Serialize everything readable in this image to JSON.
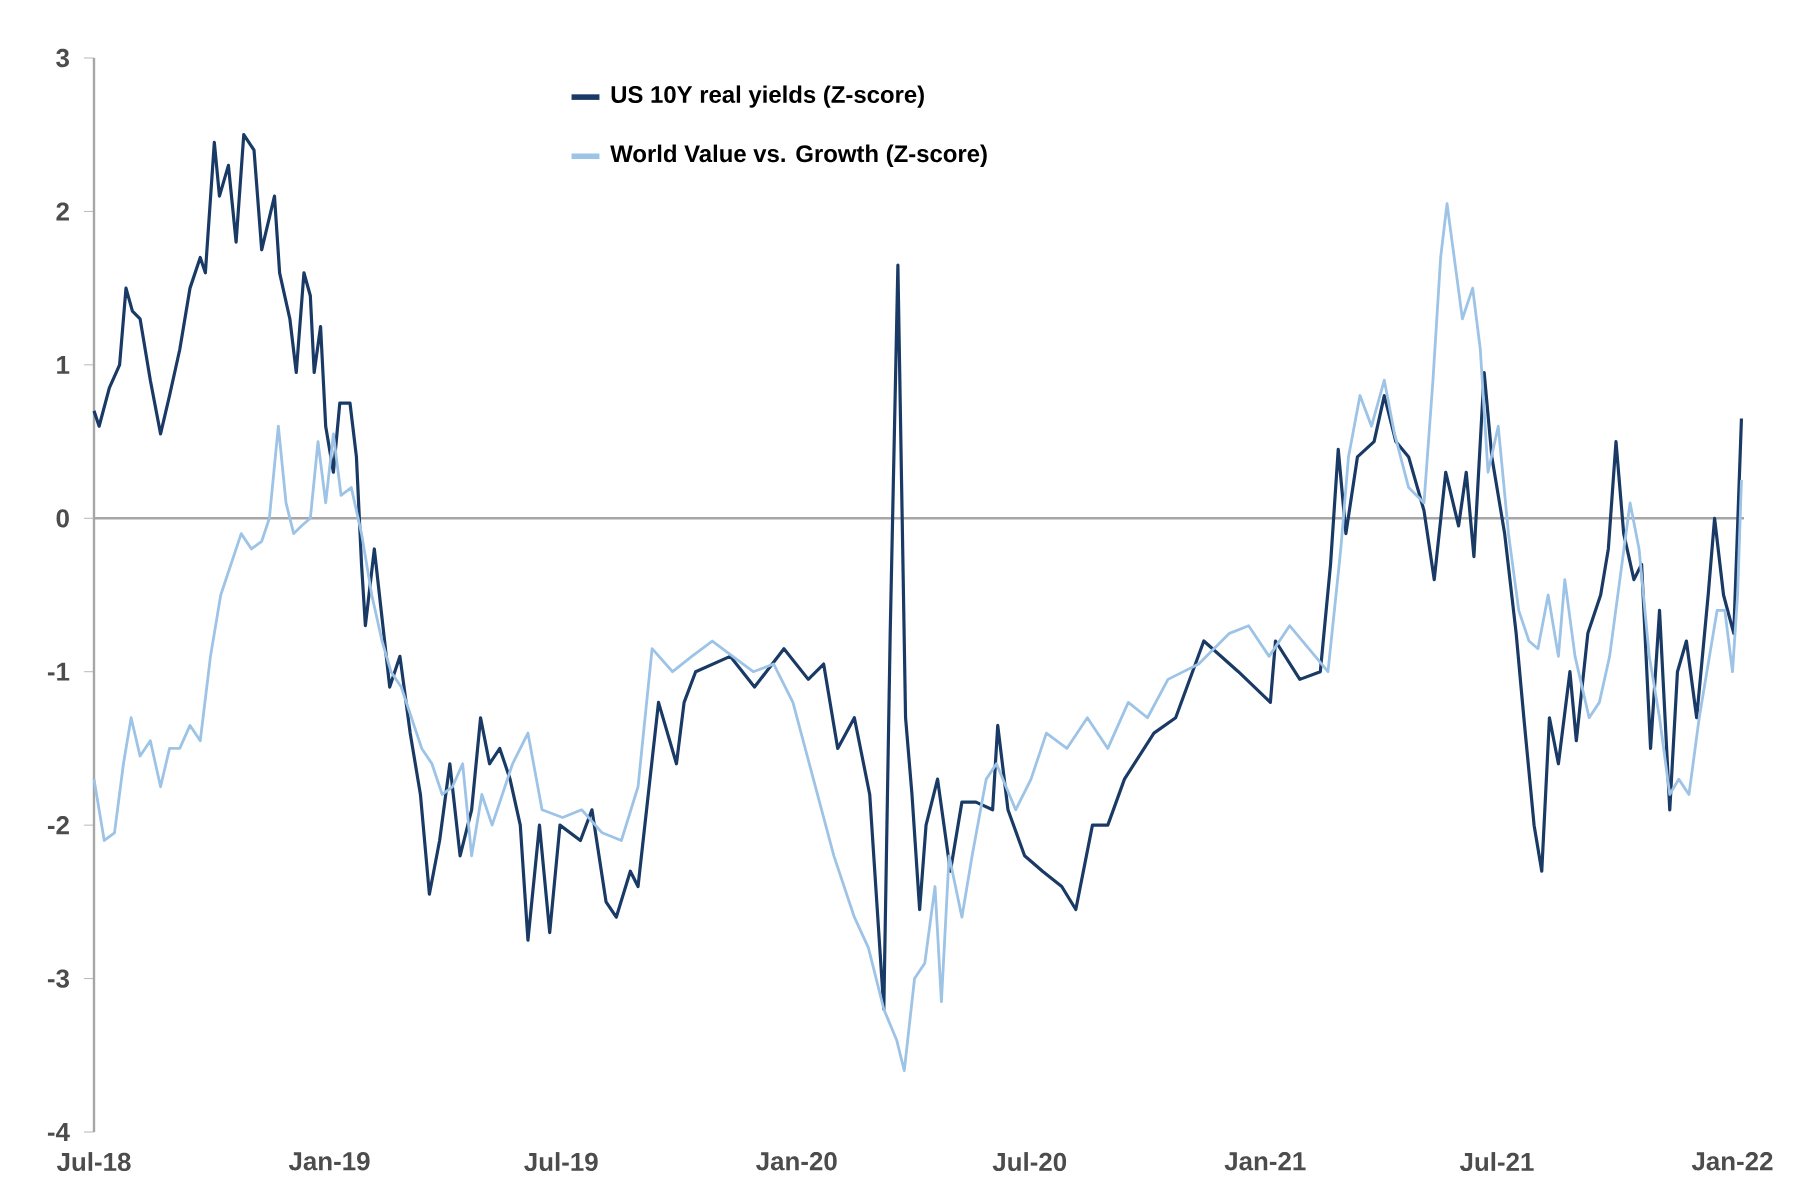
{
  "chart_data": {
    "type": "line",
    "xlim": [
      "2018-07-01",
      "2022-01-10"
    ],
    "xticks": [
      {
        "value": "2018-07-01",
        "label": "Jul-18"
      },
      {
        "value": "2019-01-01",
        "label": "Jan-19"
      },
      {
        "value": "2019-07-01",
        "label": "Jul-19"
      },
      {
        "value": "2020-01-01",
        "label": "Jan-20"
      },
      {
        "value": "2020-07-01",
        "label": "Jul-20"
      },
      {
        "value": "2021-01-01",
        "label": "Jan-21"
      },
      {
        "value": "2021-07-01",
        "label": "Jul-21"
      },
      {
        "value": "2022-01-01",
        "label": "Jan-22"
      }
    ],
    "ylim": [
      -4,
      3
    ],
    "yticks": [
      -4,
      -3,
      -2,
      -1,
      0,
      1,
      2,
      3
    ],
    "grid": false,
    "legend": "top",
    "marker": "none",
    "line_style": "solid",
    "ref_lines": [
      {
        "axis": "y",
        "value": 0,
        "color": "#a6a6a6"
      }
    ],
    "series": [
      {
        "name": "US 10Y real yields (Z-score)",
        "color": "#1a3a66",
        "x": [
          "2018-07-01",
          "2018-07-05",
          "2018-07-13",
          "2018-07-21",
          "2018-07-26",
          "2018-07-31",
          "2018-08-06",
          "2018-08-14",
          "2018-08-22",
          "2018-08-29",
          "2018-09-06",
          "2018-09-14",
          "2018-09-22",
          "2018-09-26",
          "2018-10-03",
          "2018-10-07",
          "2018-10-14",
          "2018-10-20",
          "2018-10-26",
          "2018-11-03",
          "2018-11-09",
          "2018-11-19",
          "2018-11-23",
          "2018-12-01",
          "2018-12-06",
          "2018-12-12",
          "2018-12-17",
          "2018-12-20",
          "2018-12-25",
          "2018-12-29",
          "2019-01-04",
          "2019-01-09",
          "2019-01-17",
          "2019-01-22",
          "2019-01-26",
          "2019-01-29",
          "2019-02-05",
          "2019-02-09",
          "2019-02-17",
          "2019-02-25",
          "2019-03-05",
          "2019-03-13",
          "2019-03-20",
          "2019-03-28",
          "2019-04-05",
          "2019-04-13",
          "2019-04-22",
          "2019-04-29",
          "2019-05-06",
          "2019-05-14",
          "2019-05-22",
          "2019-05-30",
          "2019-06-05",
          "2019-06-14",
          "2019-06-22",
          "2019-06-30",
          "2019-07-16",
          "2019-07-25",
          "2019-08-05",
          "2019-08-13",
          "2019-08-24",
          "2019-08-30",
          "2019-09-15",
          "2019-09-29",
          "2019-10-05",
          "2019-10-14",
          "2019-11-10",
          "2019-11-29",
          "2019-12-22",
          "2020-01-10",
          "2020-01-22",
          "2020-02-02",
          "2020-02-15",
          "2020-02-27",
          "2020-03-09",
          "2020-03-14",
          "2020-03-20",
          "2020-03-26",
          "2020-03-31",
          "2020-04-06",
          "2020-04-11",
          "2020-04-20",
          "2020-04-30",
          "2020-05-09",
          "2020-05-20",
          "2020-06-02",
          "2020-06-06",
          "2020-06-14",
          "2020-06-27",
          "2020-07-11",
          "2020-07-26",
          "2020-08-06",
          "2020-08-19",
          "2020-08-31",
          "2020-09-13",
          "2020-10-06",
          "2020-10-23",
          "2020-11-14",
          "2020-12-11",
          "2021-01-05",
          "2021-01-09",
          "2021-01-28",
          "2021-02-13",
          "2021-02-21",
          "2021-02-27",
          "2021-03-05",
          "2021-03-14",
          "2021-03-27",
          "2021-04-04",
          "2021-04-13",
          "2021-04-23",
          "2021-05-05",
          "2021-05-13",
          "2021-05-22",
          "2021-06-01",
          "2021-06-07",
          "2021-06-13",
          "2021-06-21",
          "2021-06-27",
          "2021-07-07",
          "2021-07-16",
          "2021-07-22",
          "2021-07-30",
          "2021-08-05",
          "2021-08-11",
          "2021-08-18",
          "2021-08-27",
          "2021-09-01",
          "2021-09-10",
          "2021-09-20",
          "2021-09-26",
          "2021-10-02",
          "2021-10-08",
          "2021-10-16",
          "2021-10-22",
          "2021-10-29",
          "2021-11-05",
          "2021-11-13",
          "2021-11-19",
          "2021-11-26",
          "2021-12-04",
          "2021-12-13",
          "2021-12-18",
          "2021-12-25",
          "2022-01-02",
          "2022-01-08"
        ],
        "values": [
          0.7,
          0.6,
          0.85,
          1.0,
          1.5,
          1.35,
          1.3,
          0.9,
          0.55,
          0.8,
          1.1,
          1.5,
          1.7,
          1.6,
          2.45,
          2.1,
          2.3,
          1.8,
          2.5,
          2.4,
          1.75,
          2.1,
          1.6,
          1.3,
          0.95,
          1.6,
          1.45,
          0.95,
          1.25,
          0.6,
          0.3,
          0.75,
          0.75,
          0.4,
          -0.3,
          -0.7,
          -0.2,
          -0.5,
          -1.1,
          -0.9,
          -1.4,
          -1.8,
          -2.45,
          -2.1,
          -1.6,
          -2.2,
          -1.9,
          -1.3,
          -1.6,
          -1.5,
          -1.7,
          -2.0,
          -2.75,
          -2.0,
          -2.7,
          -2.0,
          -2.1,
          -1.9,
          -2.5,
          -2.6,
          -2.3,
          -2.4,
          -1.2,
          -1.6,
          -1.2,
          -1.0,
          -0.9,
          -1.1,
          -0.85,
          -1.05,
          -0.95,
          -1.5,
          -1.3,
          -1.8,
          -3.2,
          -0.75,
          1.65,
          -1.3,
          -1.8,
          -2.55,
          -2.0,
          -1.7,
          -2.3,
          -1.85,
          -1.85,
          -1.9,
          -1.35,
          -1.9,
          -2.2,
          -2.3,
          -2.4,
          -2.55,
          -2.0,
          -2.0,
          -1.7,
          -1.4,
          -1.3,
          -0.8,
          -1.0,
          -1.2,
          -0.8,
          -1.05,
          -1.0,
          -0.3,
          0.45,
          -0.1,
          0.4,
          0.5,
          0.8,
          0.5,
          0.4,
          0.05,
          -0.4,
          0.3,
          -0.05,
          0.3,
          -0.25,
          0.95,
          0.4,
          -0.1,
          -0.75,
          -1.3,
          -2.0,
          -2.3,
          -1.3,
          -1.6,
          -1.0,
          -1.45,
          -0.75,
          -0.5,
          -0.2,
          0.5,
          -0.1,
          -0.4,
          -0.3,
          -1.5,
          -0.6,
          -1.9,
          -1.0,
          -0.8,
          -1.3,
          -0.5,
          0.0,
          -0.5,
          -0.75,
          0.65
        ]
      },
      {
        "name": "World Value vs. Growth (Z-score)",
        "color": "#9dc3e6",
        "x": [
          "2018-07-01",
          "2018-07-09",
          "2018-07-17",
          "2018-07-24",
          "2018-07-30",
          "2018-08-06",
          "2018-08-14",
          "2018-08-22",
          "2018-08-29",
          "2018-09-06",
          "2018-09-14",
          "2018-09-22",
          "2018-09-30",
          "2018-10-08",
          "2018-10-16",
          "2018-10-24",
          "2018-11-01",
          "2018-11-09",
          "2018-11-15",
          "2018-11-22",
          "2018-11-28",
          "2018-12-04",
          "2018-12-10",
          "2018-12-17",
          "2018-12-23",
          "2018-12-29",
          "2019-01-04",
          "2019-01-10",
          "2019-01-18",
          "2019-01-26",
          "2019-02-03",
          "2019-02-11",
          "2019-02-18",
          "2019-02-26",
          "2019-03-06",
          "2019-03-14",
          "2019-03-22",
          "2019-03-30",
          "2019-04-07",
          "2019-04-15",
          "2019-04-22",
          "2019-04-30",
          "2019-05-08",
          "2019-05-24",
          "2019-06-05",
          "2019-06-16",
          "2019-07-02",
          "2019-07-17",
          "2019-08-02",
          "2019-08-17",
          "2019-08-30",
          "2019-09-10",
          "2019-09-26",
          "2019-10-11",
          "2019-10-27",
          "2019-11-12",
          "2019-11-28",
          "2019-12-14",
          "2019-12-29",
          "2020-01-14",
          "2020-01-30",
          "2020-02-15",
          "2020-02-26",
          "2020-03-09",
          "2020-03-19",
          "2020-03-25",
          "2020-04-02",
          "2020-04-10",
          "2020-04-18",
          "2020-04-23",
          "2020-04-29",
          "2020-05-09",
          "2020-05-17",
          "2020-05-28",
          "2020-06-05",
          "2020-06-20",
          "2020-07-02",
          "2020-07-14",
          "2020-07-30",
          "2020-08-15",
          "2020-08-31",
          "2020-09-16",
          "2020-10-01",
          "2020-10-17",
          "2020-11-10",
          "2020-12-04",
          "2020-12-19",
          "2021-01-04",
          "2021-01-20",
          "2021-02-04",
          "2021-02-19",
          "2021-03-01",
          "2021-03-07",
          "2021-03-16",
          "2021-03-25",
          "2021-04-04",
          "2021-04-12",
          "2021-04-23",
          "2021-05-05",
          "2021-05-12",
          "2021-05-18",
          "2021-05-23",
          "2021-05-27",
          "2021-06-04",
          "2021-06-12",
          "2021-06-18",
          "2021-06-24",
          "2021-07-02",
          "2021-07-10",
          "2021-07-18",
          "2021-07-26",
          "2021-08-02",
          "2021-08-10",
          "2021-08-18",
          "2021-08-23",
          "2021-08-31",
          "2021-09-11",
          "2021-09-19",
          "2021-09-27",
          "2021-10-05",
          "2021-10-13",
          "2021-10-20",
          "2021-10-28",
          "2021-11-05",
          "2021-11-13",
          "2021-11-20",
          "2021-11-28",
          "2021-12-06",
          "2021-12-12",
          "2021-12-20",
          "2021-12-26",
          "2022-01-01",
          "2022-01-05",
          "2022-01-08"
        ],
        "values": [
          -1.7,
          -2.1,
          -2.05,
          -1.6,
          -1.3,
          -1.55,
          -1.45,
          -1.75,
          -1.5,
          -1.5,
          -1.35,
          -1.45,
          -0.9,
          -0.5,
          -0.3,
          -0.1,
          -0.2,
          -0.15,
          0.0,
          0.6,
          0.1,
          -0.1,
          -0.05,
          0.0,
          0.5,
          0.1,
          0.55,
          0.15,
          0.2,
          -0.1,
          -0.5,
          -0.8,
          -1.0,
          -1.1,
          -1.3,
          -1.5,
          -1.6,
          -1.8,
          -1.75,
          -1.6,
          -2.2,
          -1.8,
          -2.0,
          -1.6,
          -1.4,
          -1.9,
          -1.95,
          -1.9,
          -2.05,
          -2.1,
          -1.75,
          -0.85,
          -1.0,
          -0.9,
          -0.8,
          -0.9,
          -1.0,
          -0.95,
          -1.2,
          -1.7,
          -2.2,
          -2.6,
          -2.8,
          -3.2,
          -3.4,
          -3.6,
          -3.0,
          -2.9,
          -2.4,
          -3.15,
          -2.2,
          -2.6,
          -2.2,
          -1.7,
          -1.6,
          -1.9,
          -1.7,
          -1.4,
          -1.5,
          -1.3,
          -1.5,
          -1.2,
          -1.3,
          -1.05,
          -0.95,
          -0.75,
          -0.7,
          -0.9,
          -0.7,
          -0.85,
          -1.0,
          -0.2,
          0.4,
          0.8,
          0.6,
          0.9,
          0.55,
          0.2,
          0.1,
          0.9,
          1.7,
          2.05,
          1.8,
          1.3,
          1.5,
          1.1,
          0.3,
          0.6,
          -0.1,
          -0.6,
          -0.8,
          -0.85,
          -0.5,
          -0.9,
          -0.4,
          -0.9,
          -1.3,
          -1.2,
          -0.9,
          -0.4,
          0.1,
          -0.2,
          -0.9,
          -1.3,
          -1.8,
          -1.7,
          -1.8,
          -1.3,
          -1.0,
          -0.6,
          -0.6,
          -1.0,
          -0.5,
          0.25
        ]
      }
    ]
  }
}
